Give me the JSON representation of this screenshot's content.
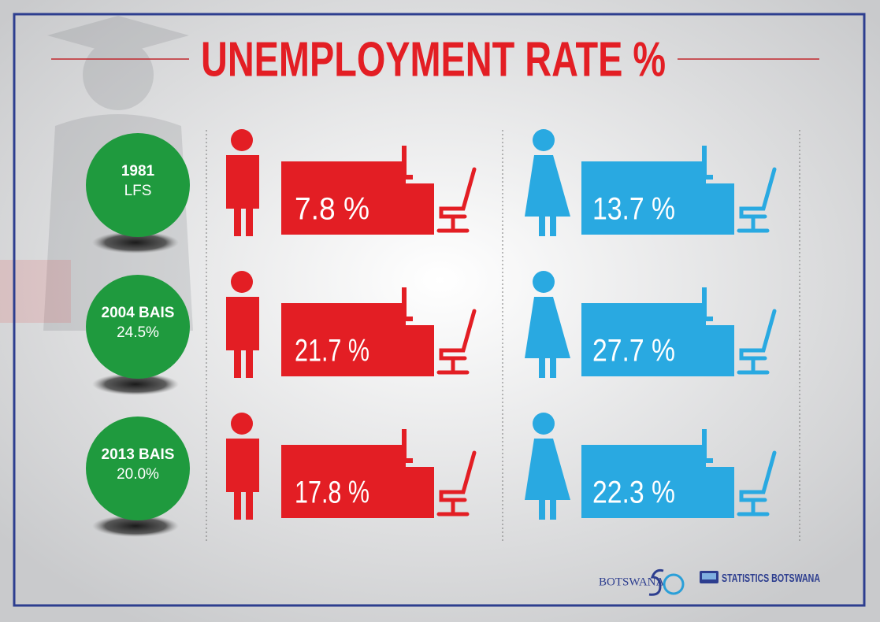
{
  "title": "UNEMPLOYMENT RATE %",
  "rows": [
    {
      "survey": "1981",
      "detail": "LFS",
      "male": "7.8 %",
      "female": "13.7 %"
    },
    {
      "survey": "2004 BAIS",
      "detail": "24.5%",
      "male": "21.7 %",
      "female": "27.7 %"
    },
    {
      "survey": "2013 BAIS",
      "detail": "20.0%",
      "male": "17.8 %",
      "female": "22.3 %"
    }
  ],
  "footer": {
    "logo_left": "BOTSWANA",
    "logo_right": "STATISTICS BOTSWANA"
  }
}
